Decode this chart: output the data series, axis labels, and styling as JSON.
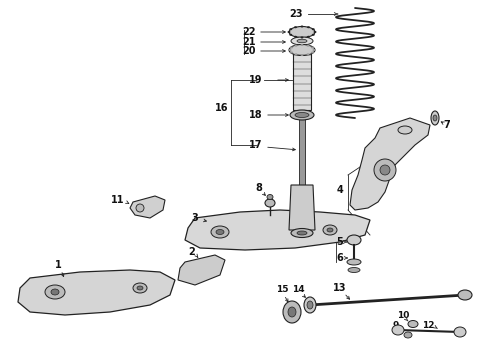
{
  "bg_color": "#ffffff",
  "line_color": "#222222",
  "figsize": [
    4.9,
    3.6
  ],
  "dpi": 100,
  "label_fontsize": 7.0,
  "label_fontsize_small": 6.5
}
